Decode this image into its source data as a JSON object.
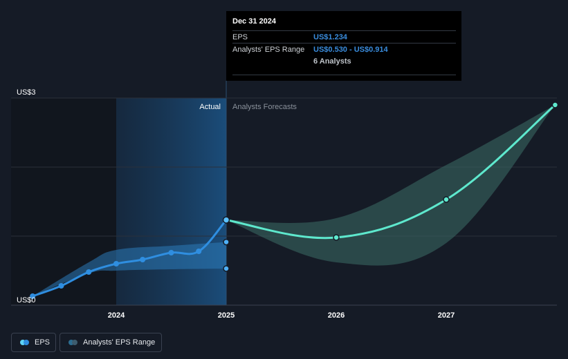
{
  "tooltip": {
    "date": "Dec 31 2024",
    "eps_label": "EPS",
    "eps_value": "US$1.234",
    "range_label": "Analysts' EPS Range",
    "range_value": "US$0.530 - US$0.914",
    "analysts": "6 Analysts"
  },
  "labels": {
    "actual": "Actual",
    "forecast": "Analysts Forecasts"
  },
  "legend": {
    "eps": "EPS",
    "range": "Analysts' EPS Range"
  },
  "colors": {
    "background": "#151b26",
    "eps_line": "#2f8ee0",
    "forecast_line": "#5ee8cd",
    "range_band": "#2c7ab8",
    "forecast_band": "#3d6e66",
    "highlight": "#1b4f7e"
  },
  "chart_data": {
    "type": "line",
    "y_axis": {
      "ticks": [
        "US$0",
        "US$3"
      ],
      "min": 0,
      "max": 3,
      "gridlines": [
        0,
        1,
        2,
        3
      ]
    },
    "x_axis": {
      "ticks": [
        "2024",
        "2025",
        "2026",
        "2027"
      ],
      "range": [
        2023.25,
        2027.99
      ]
    },
    "series": [
      {
        "name": "EPS",
        "kind": "actual",
        "points": [
          {
            "x": 2023.24,
            "y": 0.13
          },
          {
            "x": 2023.5,
            "y": 0.28
          },
          {
            "x": 2023.75,
            "y": 0.48
          },
          {
            "x": 2024.0,
            "y": 0.6
          },
          {
            "x": 2024.24,
            "y": 0.66
          },
          {
            "x": 2024.5,
            "y": 0.76
          },
          {
            "x": 2024.75,
            "y": 0.78
          },
          {
            "x": 2025.0,
            "y": 1.234
          }
        ]
      },
      {
        "name": "Analysts' EPS Range",
        "kind": "range",
        "upper": [
          {
            "x": 2023.24,
            "y": 0.13
          },
          {
            "x": 2023.75,
            "y": 0.62
          },
          {
            "x": 2024.0,
            "y": 0.8
          },
          {
            "x": 2024.5,
            "y": 0.86
          },
          {
            "x": 2025.0,
            "y": 0.914
          }
        ],
        "lower": [
          {
            "x": 2023.24,
            "y": 0.13
          },
          {
            "x": 2023.75,
            "y": 0.46
          },
          {
            "x": 2024.0,
            "y": 0.5
          },
          {
            "x": 2024.5,
            "y": 0.52
          },
          {
            "x": 2025.0,
            "y": 0.53
          }
        ],
        "end_points": [
          0.914,
          0.53
        ]
      },
      {
        "kind": "forecast",
        "points": [
          {
            "x": 2025.0,
            "y": 1.234
          },
          {
            "x": 2026.0,
            "y": 0.98
          },
          {
            "x": 2027.0,
            "y": 1.53
          },
          {
            "x": 2027.99,
            "y": 2.9
          }
        ],
        "upper": [
          {
            "x": 2025.0,
            "y": 1.234
          },
          {
            "x": 2026.0,
            "y": 1.26
          },
          {
            "x": 2027.0,
            "y": 2.03
          },
          {
            "x": 2027.99,
            "y": 2.9
          }
        ],
        "lower": [
          {
            "x": 2025.0,
            "y": 1.234
          },
          {
            "x": 2026.0,
            "y": 0.62
          },
          {
            "x": 2027.0,
            "y": 0.9
          },
          {
            "x": 2027.99,
            "y": 2.9
          }
        ]
      }
    ]
  }
}
